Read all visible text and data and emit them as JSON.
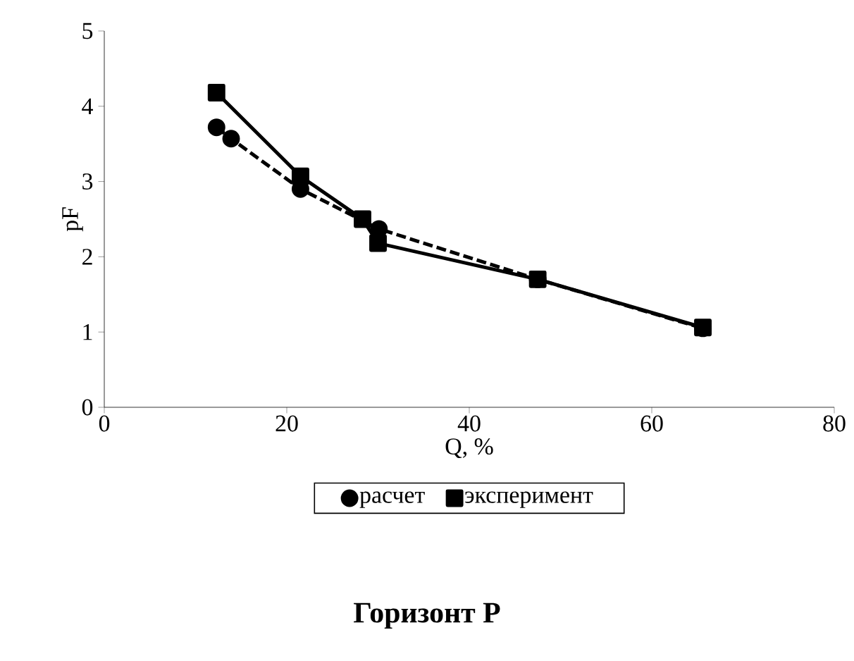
{
  "chart_data": {
    "type": "line",
    "title": "**Горизонт Р**",
    "xlabel": "Q, %",
    "ylabel": "pF",
    "xlim": [
      0,
      80
    ],
    "xticks": [
      0,
      20,
      40,
      60,
      80
    ],
    "ylim": [
      0,
      5
    ],
    "yticks": [
      0,
      1,
      2,
      3,
      4,
      5
    ],
    "grid": false,
    "legend": "bottom",
    "series": [
      {
        "name": "расчет",
        "color": "#000000",
        "marker": "circle",
        "line_style": "dashed",
        "x": [
          12.3,
          13.9,
          21.5,
          30.1,
          47.5,
          65.6
        ],
        "values": [
          3.72,
          3.57,
          2.9,
          2.37,
          1.7,
          1.05
        ]
      },
      {
        "name": "эксперимент",
        "color": "#000000",
        "marker": "square",
        "line_style": "solid",
        "x": [
          12.3,
          21.5,
          28.3,
          30.0,
          47.5,
          65.6
        ],
        "values": [
          4.18,
          3.07,
          2.5,
          2.18,
          1.7,
          1.06
        ]
      }
    ]
  }
}
